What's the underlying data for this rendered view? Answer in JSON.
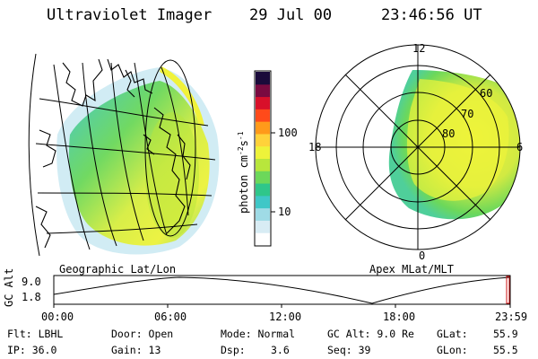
{
  "header": {
    "instrument": "Ultraviolet Imager",
    "date": "29 Jul 00",
    "time": "23:46:56 UT"
  },
  "colorbar": {
    "unit_label": "photon cm",
    "unit_exp1": "-2",
    "unit_s": "s",
    "unit_exp2": "-1",
    "tick_100": "100",
    "tick_10": "10",
    "colors": [
      "#ffffff",
      "#d8ecf4",
      "#9fdbe6",
      "#3fc7c7",
      "#2fc68a",
      "#6cd85a",
      "#b8e63c",
      "#eef33a",
      "#ffd23a",
      "#ff9a1a",
      "#ff4a1a",
      "#d8102a",
      "#7a0a40",
      "#1a0a3a"
    ]
  },
  "geo_panel": {
    "label": "Geographic Lat/Lon"
  },
  "polar_panel": {
    "label": "Apex MLat/MLT",
    "mlt_top": "12",
    "mlt_left": "18",
    "mlt_right": "6",
    "mlt_bottom": "0",
    "lat_60": "60",
    "lat_70": "70",
    "lat_80": "80"
  },
  "altitude_plot": {
    "ylabel": "GC Alt",
    "ytick_top": "9.0",
    "ytick_bottom": "1.8",
    "xticks": [
      "00:00",
      "06:00",
      "12:00",
      "18:00",
      "23:59"
    ]
  },
  "footer": {
    "filter": "Flt: LBHL",
    "ip": "IP: 36.0",
    "door": "Door: Open",
    "gain": "Gain: 13",
    "mode": "Mode: Normal",
    "dsp_label": "Dsp:",
    "dsp_value": "3.6",
    "gc_alt": "GC Alt: 9.0 Re",
    "seq": "Seq: 39",
    "glat": "GLat:",
    "glat_value": "55.9",
    "glon": "GLon:",
    "glon_value": "55.5"
  }
}
